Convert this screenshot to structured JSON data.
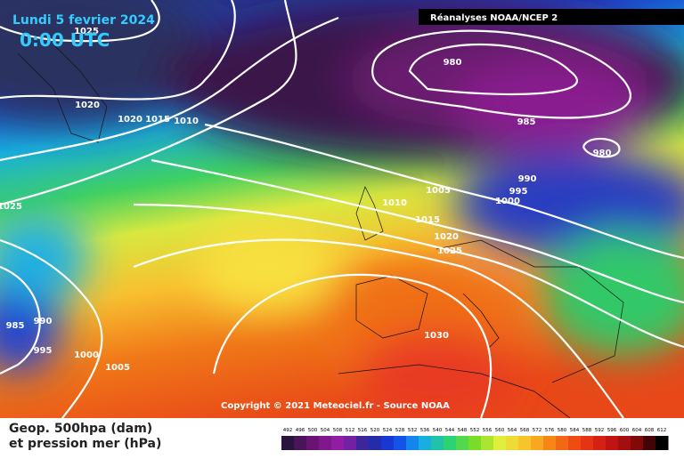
{
  "header": {
    "date": "Lundi 5 fevrier 2024",
    "time": "0:00 UTC",
    "source": "Réanalyses NOAA/NCEP 2"
  },
  "copyright": "Copyright © 2021 Meteociel.fr - Source NOAA",
  "legend": {
    "line1": "Geop. 500hpa (dam)",
    "line2": "et pression mer (hPa)",
    "scale": [
      "492",
      "496",
      "500",
      "504",
      "508",
      "512",
      "516",
      "520",
      "524",
      "528",
      "532",
      "536",
      "540",
      "544",
      "548",
      "552",
      "556",
      "560",
      "564",
      "568",
      "572",
      "576",
      "580",
      "584",
      "588",
      "592",
      "596",
      "600",
      "604",
      "608",
      "612"
    ]
  },
  "isobar_labels": [
    "1025",
    "1020",
    "1020",
    "1015",
    "1010",
    "1025",
    "990",
    "985",
    "995",
    "1000",
    "1005",
    "980",
    "985",
    "980",
    "990",
    "995",
    "1000",
    "1005",
    "1010",
    "1015",
    "1020",
    "1025",
    "1030"
  ]
}
